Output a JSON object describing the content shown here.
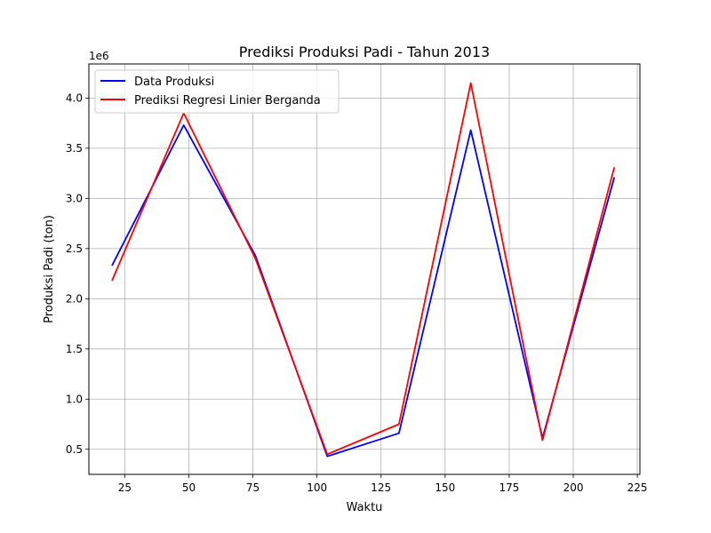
{
  "chart_data": {
    "type": "line",
    "title": "Prediksi Produksi Padi - Tahun 2013",
    "xlabel": "Waktu",
    "ylabel": "Produksi Padi (ton)",
    "y_offset_label": "1e6",
    "y_scale": 1000000,
    "xlim": [
      11,
      226
    ],
    "ylim": [
      250000,
      4340000
    ],
    "grid": true,
    "legend_position": "top-left",
    "x_ticks": [
      25,
      50,
      75,
      100,
      125,
      150,
      175,
      200,
      225
    ],
    "x_tick_labels": [
      "25",
      "50",
      "75",
      "100",
      "125",
      "150",
      "175",
      "200",
      "225"
    ],
    "y_ticks": [
      500000,
      1000000,
      1500000,
      2000000,
      2500000,
      3000000,
      3500000,
      4000000
    ],
    "y_tick_labels": [
      "0.5",
      "1.0",
      "1.5",
      "2.0",
      "2.5",
      "3.0",
      "3.5",
      "4.0"
    ],
    "x": [
      20,
      48,
      76,
      104,
      132,
      160,
      188,
      216
    ],
    "series": [
      {
        "name": "Data Produksi",
        "color": "#0000ff",
        "values": [
          2330000,
          3730000,
          2430000,
          430000,
          660000,
          3680000,
          610000,
          3210000
        ]
      },
      {
        "name": "Prediksi Regresi Linier Berganda",
        "color": "#ff0000",
        "values": [
          2180000,
          3850000,
          2400000,
          450000,
          750000,
          4150000,
          590000,
          3310000
        ]
      }
    ]
  }
}
